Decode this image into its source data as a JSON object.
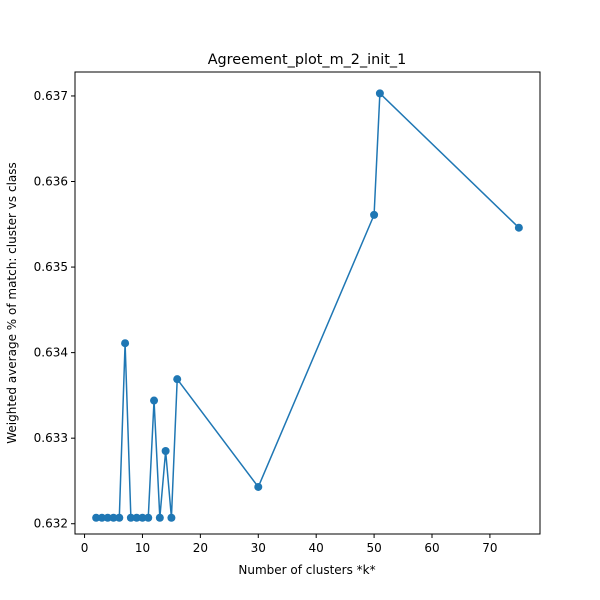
{
  "chart_data": {
    "type": "line",
    "title": "Agreement_plot_m_2_init_1",
    "xlabel": "Number of clusters *k*",
    "ylabel": "Weighted average % of match: cluster vs class",
    "xlim": [
      -1.65,
      78.65
    ],
    "ylim": [
      0.63188,
      0.63728
    ],
    "x_ticks": [
      0,
      10,
      20,
      30,
      40,
      50,
      60,
      70
    ],
    "x_tick_labels": [
      "0",
      "10",
      "20",
      "30",
      "40",
      "50",
      "60",
      "70"
    ],
    "y_ticks": [
      0.632,
      0.633,
      0.634,
      0.635,
      0.636,
      0.637
    ],
    "y_tick_labels": [
      "0.632",
      "0.633",
      "0.634",
      "0.635",
      "0.636",
      "0.637"
    ],
    "grid": false,
    "series": [
      {
        "color": "#1f77b4",
        "marker": "circle",
        "x": [
          2,
          3,
          4,
          5,
          6,
          7,
          8,
          9,
          10,
          11,
          12,
          13,
          14,
          15,
          16,
          30,
          50,
          51,
          75
        ],
        "y": [
          0.63207,
          0.63207,
          0.63207,
          0.63207,
          0.63207,
          0.63411,
          0.63207,
          0.63207,
          0.63207,
          0.63207,
          0.63344,
          0.63207,
          0.63285,
          0.63207,
          0.63369,
          0.63243,
          0.63561,
          0.63703,
          0.63546
        ]
      }
    ]
  }
}
